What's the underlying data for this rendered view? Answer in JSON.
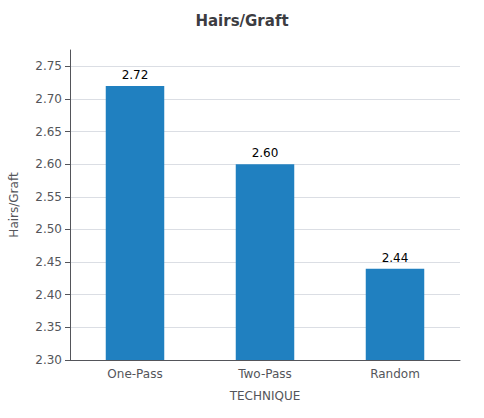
{
  "chart_data": {
    "type": "bar",
    "title": "Hairs/Graft",
    "xlabel": "TECHNIQUE",
    "ylabel": "Hairs/Graft",
    "categories": [
      "One-Pass",
      "Two-Pass",
      "Random"
    ],
    "values": [
      2.72,
      2.6,
      2.44
    ],
    "value_labels": [
      "2.72",
      "2.60",
      "2.44"
    ],
    "color": "#2080c0",
    "ylim": [
      2.3,
      2.775
    ],
    "yticks": [
      {
        "value": 2.3,
        "label": "2.30"
      },
      {
        "value": 2.35,
        "label": "2.35"
      },
      {
        "value": 2.4,
        "label": "2.40"
      },
      {
        "value": 2.45,
        "label": "2.45"
      },
      {
        "value": 2.5,
        "label": "2.50"
      },
      {
        "value": 2.55,
        "label": "2.55"
      },
      {
        "value": 2.6,
        "label": "2.60"
      },
      {
        "value": 2.65,
        "label": "2.65"
      },
      {
        "value": 2.7,
        "label": "2.70"
      },
      {
        "value": 2.75,
        "label": "2.75"
      }
    ],
    "grid": true,
    "data_labels": true
  }
}
